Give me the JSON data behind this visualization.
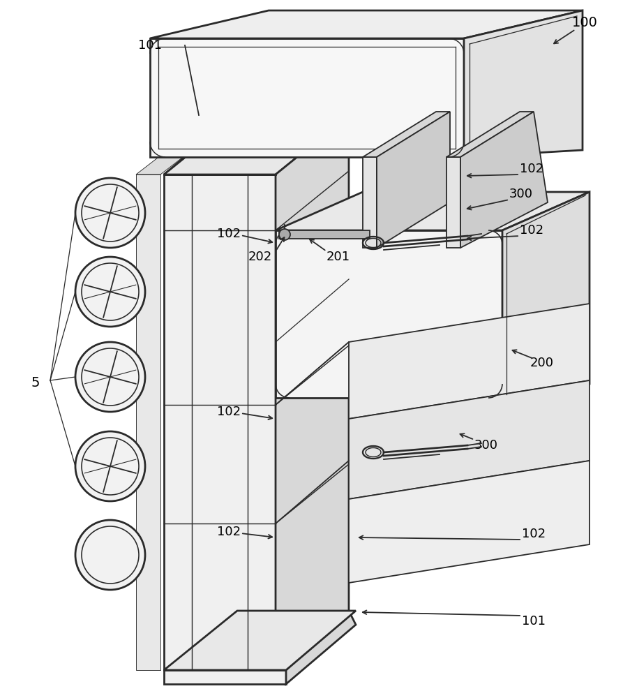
{
  "background_color": "#ffffff",
  "line_color": "#2a2a2a",
  "lw": 1.3,
  "tlw": 2.0,
  "fig_width": 8.93,
  "fig_height": 10.0,
  "dpi": 100,
  "gray_light": "#f0f0f0",
  "gray_mid": "#e0e0e0",
  "gray_dark": "#c8c8c8",
  "gray_side": "#d8d8d8",
  "gray_top": "#e8e8e8"
}
